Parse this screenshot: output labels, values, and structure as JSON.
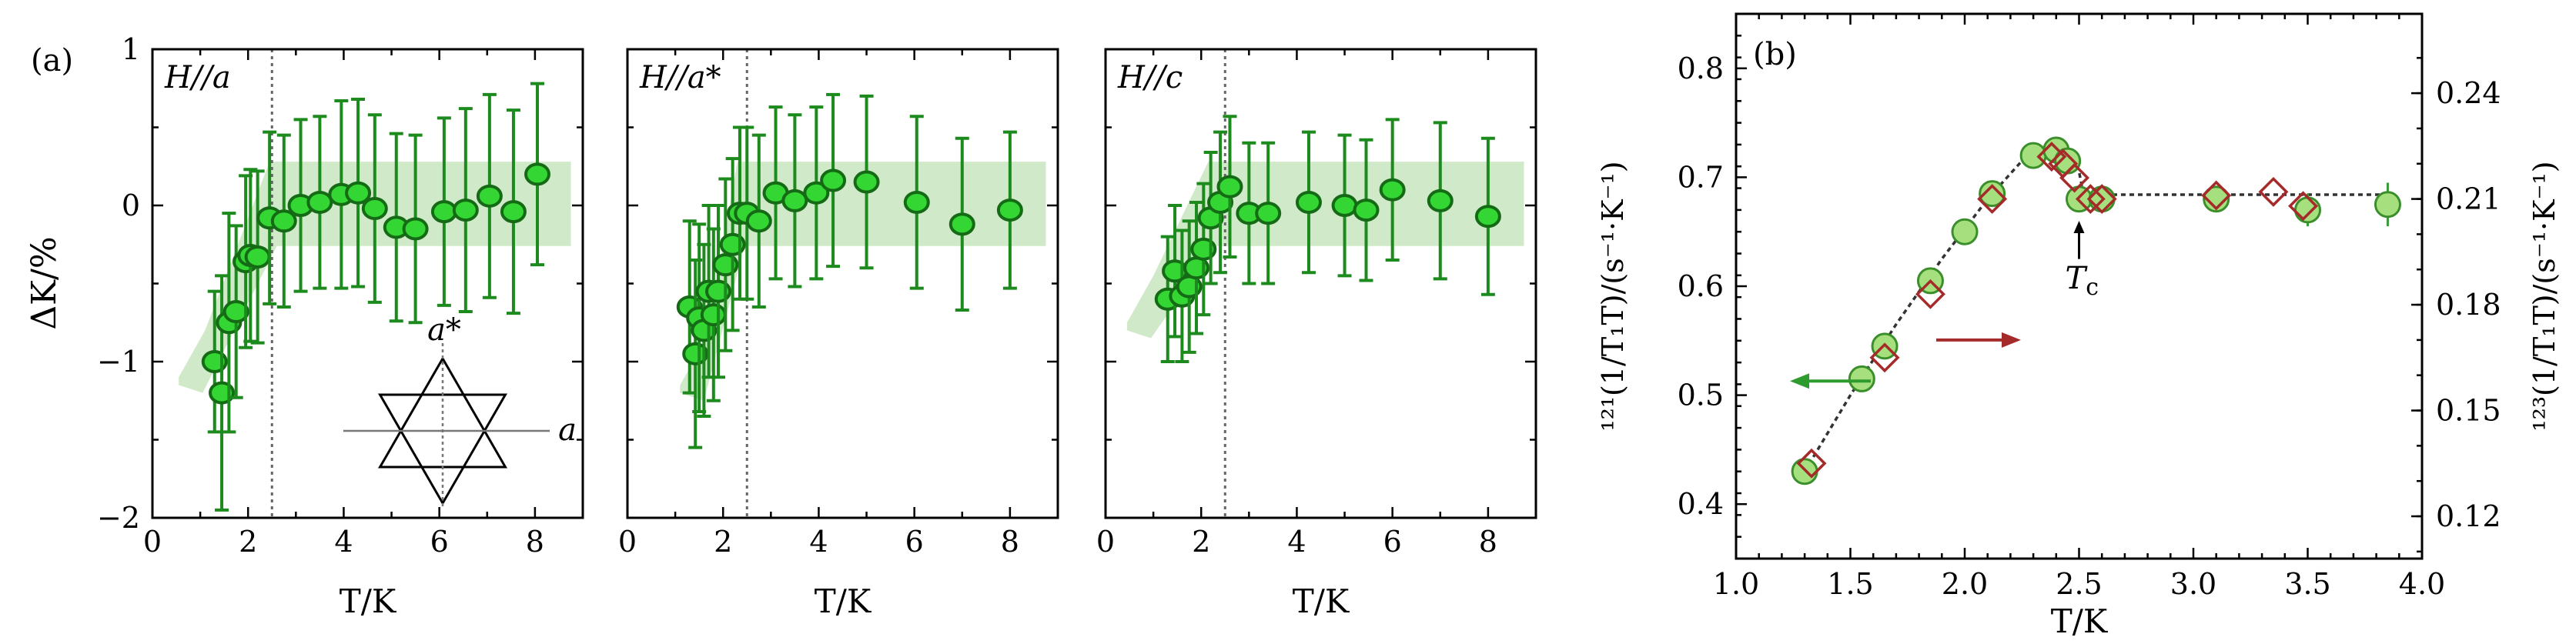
{
  "figure": {
    "panel_a_tag": "(a)",
    "panel_b_tag": "(b)"
  },
  "chart_data": [
    {
      "type": "scatter",
      "panel": "(a)",
      "subplot_title": "H//a",
      "xlabel": "T/K",
      "ylabel": "ΔK/%",
      "xlim": [
        0,
        9
      ],
      "ylim": [
        -2,
        1
      ],
      "x_ticks": [
        "0",
        "2",
        "4",
        "6",
        "8"
      ],
      "y_ticks": [
        "−2",
        "−1",
        "0",
        "1"
      ],
      "tc_line_x": 2.5,
      "inset_labels": {
        "a_star": "a*",
        "a": "a"
      },
      "x": [
        1.3,
        1.45,
        1.6,
        1.75,
        1.95,
        2.05,
        2.2,
        2.45,
        2.75,
        3.1,
        3.5,
        3.95,
        4.3,
        4.65,
        5.1,
        5.5,
        6.1,
        6.55,
        7.05,
        7.55,
        8.05
      ],
      "y": [
        -1.0,
        -1.2,
        -0.75,
        -0.68,
        -0.36,
        -0.32,
        -0.33,
        -0.08,
        -0.1,
        0.0,
        0.02,
        0.07,
        0.08,
        -0.02,
        -0.14,
        -0.15,
        -0.04,
        -0.03,
        0.06,
        -0.04,
        0.2
      ],
      "err": [
        0.45,
        0.75,
        0.7,
        0.55,
        0.55,
        0.55,
        0.55,
        0.55,
        0.55,
        0.55,
        0.55,
        0.6,
        0.6,
        0.6,
        0.6,
        0.6,
        0.6,
        0.65,
        0.65,
        0.65,
        0.58
      ]
    },
    {
      "type": "scatter",
      "panel": "(a)",
      "subplot_title": "H//a*",
      "xlabel": "T/K",
      "xlim": [
        0,
        9
      ],
      "ylim": [
        -2,
        1
      ],
      "x_ticks": [
        "0",
        "2",
        "4",
        "6",
        "8"
      ],
      "tc_line_x": 2.5,
      "x": [
        1.3,
        1.42,
        1.5,
        1.6,
        1.7,
        1.8,
        1.9,
        2.05,
        2.2,
        2.35,
        2.5,
        2.75,
        3.1,
        3.5,
        3.95,
        4.3,
        5.0,
        6.05,
        7.0,
        8.0
      ],
      "y": [
        -0.65,
        -0.95,
        -0.72,
        -0.8,
        -0.55,
        -0.7,
        -0.55,
        -0.38,
        -0.25,
        -0.05,
        -0.05,
        -0.1,
        0.08,
        0.03,
        0.08,
        0.16,
        0.15,
        0.02,
        -0.12,
        -0.03
      ],
      "err": [
        0.55,
        0.6,
        0.6,
        0.55,
        0.55,
        0.55,
        0.55,
        0.55,
        0.55,
        0.55,
        0.55,
        0.55,
        0.55,
        0.55,
        0.55,
        0.55,
        0.55,
        0.55,
        0.55,
        0.5
      ]
    },
    {
      "type": "scatter",
      "panel": "(a)",
      "subplot_title": "H//c",
      "xlabel": "T/K",
      "xlim": [
        0,
        9
      ],
      "ylim": [
        -2,
        1
      ],
      "x_ticks": [
        "0",
        "2",
        "4",
        "6",
        "8"
      ],
      "tc_line_x": 2.5,
      "x": [
        1.3,
        1.45,
        1.6,
        1.75,
        1.9,
        2.05,
        2.2,
        2.4,
        2.6,
        3.0,
        3.4,
        4.25,
        5.0,
        5.45,
        6.0,
        7.0,
        8.0
      ],
      "y": [
        -0.6,
        -0.42,
        -0.58,
        -0.52,
        -0.4,
        -0.28,
        -0.08,
        0.02,
        0.12,
        -0.05,
        -0.05,
        0.02,
        0.0,
        -0.03,
        0.1,
        0.03,
        -0.07
      ],
      "err": [
        0.4,
        0.42,
        0.42,
        0.42,
        0.42,
        0.42,
        0.42,
        0.45,
        0.45,
        0.45,
        0.45,
        0.45,
        0.45,
        0.45,
        0.45,
        0.5,
        0.5
      ]
    },
    {
      "type": "scatter",
      "panel": "(b)",
      "xlabel": "T/K",
      "ylabel_left": "¹²¹(1/T₁T)/(s⁻¹·K⁻¹)",
      "ylabel_right": "¹²³(1/T₁T)/(s⁻¹·K⁻¹)",
      "xlim": [
        1.0,
        4.0
      ],
      "ylim_left": [
        0.35,
        0.85
      ],
      "ylim_right": [
        0.108,
        0.2625
      ],
      "x_ticks": [
        "1.0",
        "1.5",
        "2.0",
        "2.5",
        "3.0",
        "3.5",
        "4.0"
      ],
      "y_ticks_left": [
        "0.4",
        "0.5",
        "0.6",
        "0.7",
        "0.8"
      ],
      "y_ticks_right": [
        "0.12",
        "0.15",
        "0.18",
        "0.21",
        "0.24"
      ],
      "annotation": "Tc",
      "tc_arrow_x": 2.5,
      "series": [
        {
          "color": "#2e9b2e",
          "marker": "circle",
          "axis": "left",
          "x": [
            1.3,
            1.55,
            1.65,
            1.85,
            2.0,
            2.12,
            2.3,
            2.4,
            2.45,
            2.5,
            2.6,
            3.1,
            3.5,
            3.85
          ],
          "y": [
            0.43,
            0.515,
            0.545,
            0.605,
            0.65,
            0.685,
            0.72,
            0.725,
            0.715,
            0.68,
            0.68,
            0.68,
            0.67,
            0.675
          ],
          "err": [
            0.008,
            0.012,
            0.012,
            0.01,
            0.01,
            0.01,
            0.008,
            0.01,
            0.01,
            0.01,
            0.01,
            0.012,
            0.015,
            0.02
          ]
        },
        {
          "color": "#a52a2a",
          "marker": "diamond",
          "axis": "right",
          "x": [
            1.33,
            1.65,
            1.85,
            2.12,
            2.38,
            2.43,
            2.48,
            2.55,
            2.6,
            3.1,
            3.35,
            3.48
          ],
          "y": [
            0.135,
            0.165,
            0.183,
            0.21,
            0.222,
            0.22,
            0.216,
            0.21,
            0.21,
            0.211,
            0.212,
            0.208
          ]
        }
      ],
      "fit_line_x": [
        1.3,
        1.5,
        1.7,
        1.9,
        2.1,
        2.25,
        2.4,
        2.5,
        2.52,
        3.0,
        3.5,
        3.88
      ],
      "fit_line_y": [
        0.43,
        0.5,
        0.565,
        0.625,
        0.68,
        0.715,
        0.725,
        0.705,
        0.684,
        0.684,
        0.684,
        0.684
      ]
    }
  ]
}
